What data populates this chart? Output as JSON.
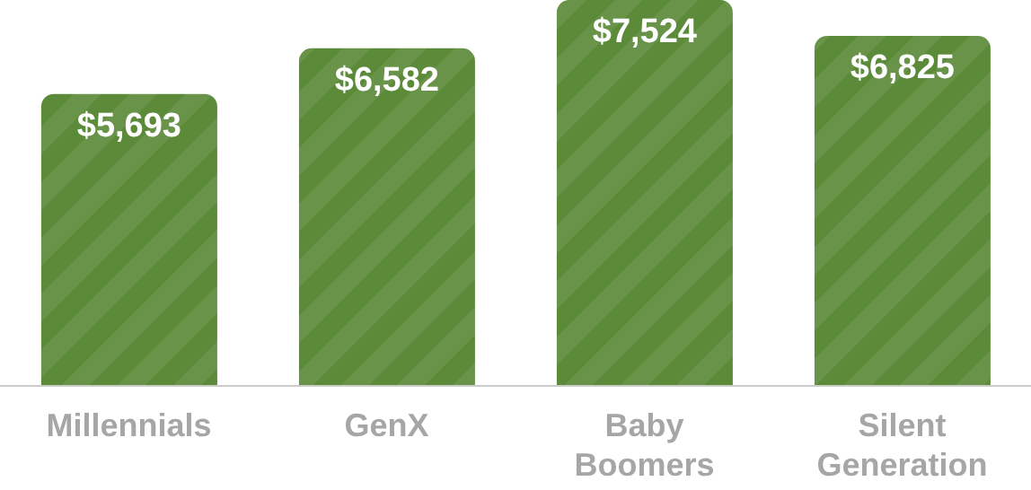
{
  "chart_data": {
    "type": "bar",
    "categories": [
      "Millennials",
      "GenX",
      "Baby Boomers",
      "Silent Generation"
    ],
    "values": [
      5693,
      6582,
      7524,
      6825
    ],
    "color": "#5b8a38",
    "value_labels": [
      "$5,693",
      "$6,582",
      "$7,524",
      "$6,825"
    ]
  }
}
